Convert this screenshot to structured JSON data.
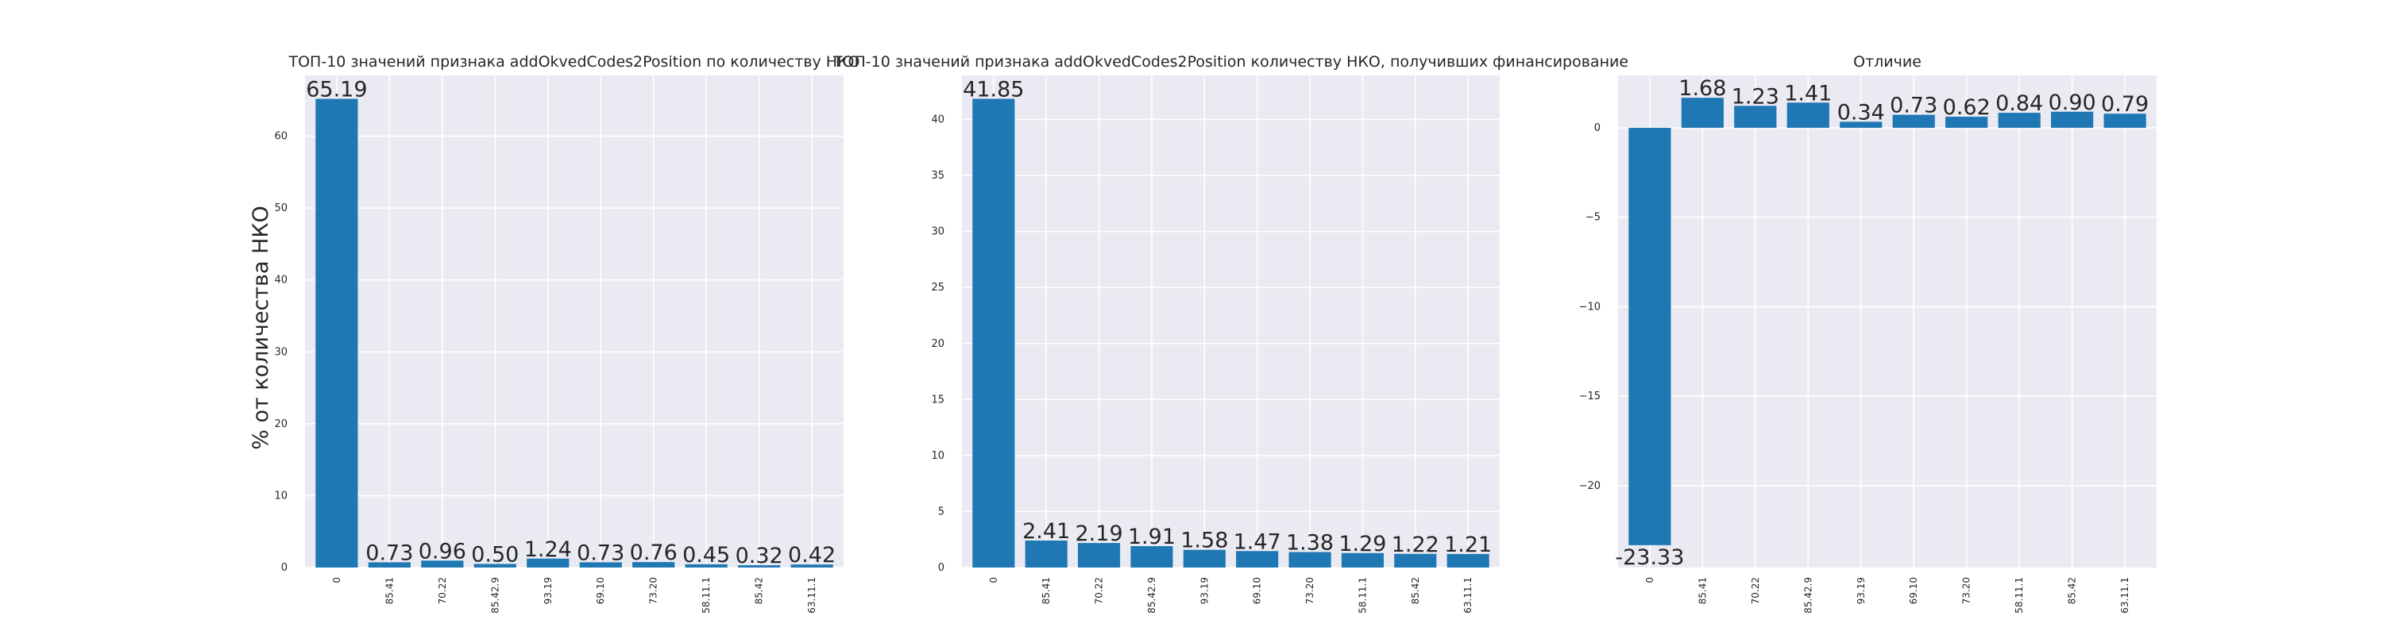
{
  "figure": {
    "ylabel": "% от количества НКО"
  },
  "chart_data": [
    {
      "type": "bar",
      "title": "ТОП-10 значений признака addOkvedCodes2Position по количеству НКО",
      "xlabel": "",
      "ylabel": "% от количества НКО",
      "categories": [
        "0",
        "85.41",
        "70.22",
        "85.42.9",
        "93.19",
        "69.10",
        "73.20",
        "58.11.1",
        "85.42",
        "63.11.1"
      ],
      "values": [
        65.19,
        0.73,
        0.96,
        0.5,
        1.24,
        0.73,
        0.76,
        0.45,
        0.32,
        0.42
      ],
      "labels": [
        "65.19",
        "0.73",
        "0.96",
        "0.50",
        "1.24",
        "0.73",
        "0.76",
        "0.45",
        "0.32",
        "0.42"
      ],
      "ylim": [
        0,
        68.45
      ],
      "yticks": [
        0,
        10,
        20,
        30,
        40,
        50,
        60
      ],
      "ytick_labels": [
        "0",
        "10",
        "20",
        "30",
        "40",
        "50",
        "60"
      ],
      "grid": true,
      "bar_color": "#1f77b4",
      "bg_color": "#eaeaf2"
    },
    {
      "type": "bar",
      "title": "ТОП-10 значений признака addOkvedCodes2Position количеству НКО, получивших финансирование",
      "xlabel": "",
      "ylabel": "",
      "categories": [
        "0",
        "85.41",
        "70.22",
        "85.42.9",
        "93.19",
        "69.10",
        "73.20",
        "58.11.1",
        "85.42",
        "63.11.1"
      ],
      "values": [
        41.85,
        2.41,
        2.19,
        1.91,
        1.58,
        1.47,
        1.38,
        1.29,
        1.22,
        1.21
      ],
      "labels": [
        "41.85",
        "2.41",
        "2.19",
        "1.91",
        "1.58",
        "1.47",
        "1.38",
        "1.29",
        "1.22",
        "1.21"
      ],
      "ylim": [
        0,
        43.94
      ],
      "yticks": [
        0,
        5,
        10,
        15,
        20,
        25,
        30,
        35,
        40
      ],
      "ytick_labels": [
        "0",
        "5",
        "10",
        "15",
        "20",
        "25",
        "30",
        "35",
        "40"
      ],
      "grid": true,
      "bar_color": "#1f77b4",
      "bg_color": "#eaeaf2"
    },
    {
      "type": "bar",
      "title": "Отличие",
      "xlabel": "",
      "ylabel": "",
      "categories": [
        "0",
        "85.41",
        "70.22",
        "85.42.9",
        "93.19",
        "69.10",
        "73.20",
        "58.11.1",
        "85.42",
        "63.11.1"
      ],
      "values": [
        -23.33,
        1.68,
        1.23,
        1.41,
        0.34,
        0.73,
        0.62,
        0.84,
        0.9,
        0.79
      ],
      "labels": [
        "-23.33",
        "1.68",
        "1.23",
        "1.41",
        "0.34",
        "0.73",
        "0.62",
        "0.84",
        "0.90",
        "0.79"
      ],
      "ylim": [
        -24.58,
        2.93
      ],
      "yticks": [
        -20,
        -15,
        -10,
        -5,
        0
      ],
      "ytick_labels": [
        "−20",
        "−15",
        "−10",
        "−5",
        "0"
      ],
      "grid": true,
      "bar_color": "#1f77b4",
      "bg_color": "#eaeaf2"
    }
  ]
}
